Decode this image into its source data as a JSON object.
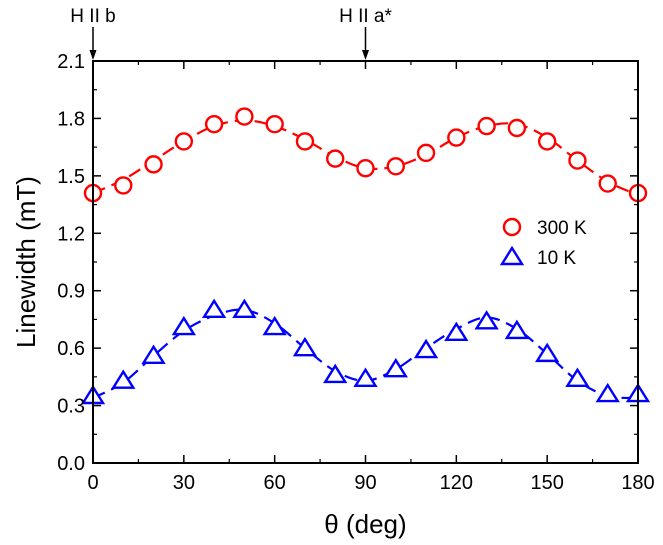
{
  "chart_data": {
    "type": "scatter",
    "xlabel": "θ (deg)",
    "ylabel": "Linewidth (mT)",
    "xlim": [
      0,
      180
    ],
    "ylim": [
      0.0,
      2.1
    ],
    "xticks": [
      0,
      30,
      60,
      90,
      120,
      150,
      180
    ],
    "xtick_labels": [
      "0",
      "30",
      "60",
      "90",
      "120",
      "150",
      "180"
    ],
    "yticks": [
      0.0,
      0.3,
      0.6,
      0.9,
      1.2,
      1.5,
      1.8,
      2.1
    ],
    "ytick_labels": [
      "0.0",
      "0.3",
      "0.6",
      "0.9",
      "1.2",
      "1.5",
      "1.8",
      "2.1"
    ],
    "grid": false,
    "legend_position": "right",
    "annotations": [
      {
        "text": "H II b",
        "x": 0
      },
      {
        "text": "H II a*",
        "x": 90
      }
    ],
    "series": [
      {
        "name": "300 K",
        "marker": "circle",
        "color": "#ff0000",
        "x": [
          0,
          10,
          20,
          30,
          40,
          50,
          60,
          70,
          80,
          90,
          100,
          110,
          120,
          130,
          140,
          150,
          160,
          170,
          180
        ],
        "y": [
          1.41,
          1.45,
          1.56,
          1.68,
          1.77,
          1.81,
          1.77,
          1.68,
          1.59,
          1.54,
          1.55,
          1.62,
          1.7,
          1.76,
          1.75,
          1.68,
          1.58,
          1.46,
          1.41
        ],
        "fit_y": [
          1.41,
          1.48,
          1.58,
          1.68,
          1.76,
          1.79,
          1.76,
          1.69,
          1.6,
          1.54,
          1.55,
          1.61,
          1.7,
          1.76,
          1.77,
          1.7,
          1.58,
          1.47,
          1.4
        ]
      },
      {
        "name": "10 K",
        "marker": "triangle",
        "color": "#0000ff",
        "x": [
          0,
          10,
          20,
          30,
          40,
          50,
          60,
          70,
          80,
          90,
          100,
          110,
          120,
          130,
          140,
          150,
          160,
          170,
          180
        ],
        "y": [
          0.35,
          0.43,
          0.56,
          0.71,
          0.8,
          0.8,
          0.71,
          0.6,
          0.46,
          0.44,
          0.49,
          0.59,
          0.68,
          0.74,
          0.69,
          0.57,
          0.44,
          0.36,
          0.36
        ],
        "fit_y": [
          0.34,
          0.42,
          0.56,
          0.69,
          0.77,
          0.8,
          0.73,
          0.6,
          0.48,
          0.43,
          0.49,
          0.6,
          0.7,
          0.76,
          0.7,
          0.57,
          0.43,
          0.35,
          0.34
        ]
      }
    ]
  }
}
